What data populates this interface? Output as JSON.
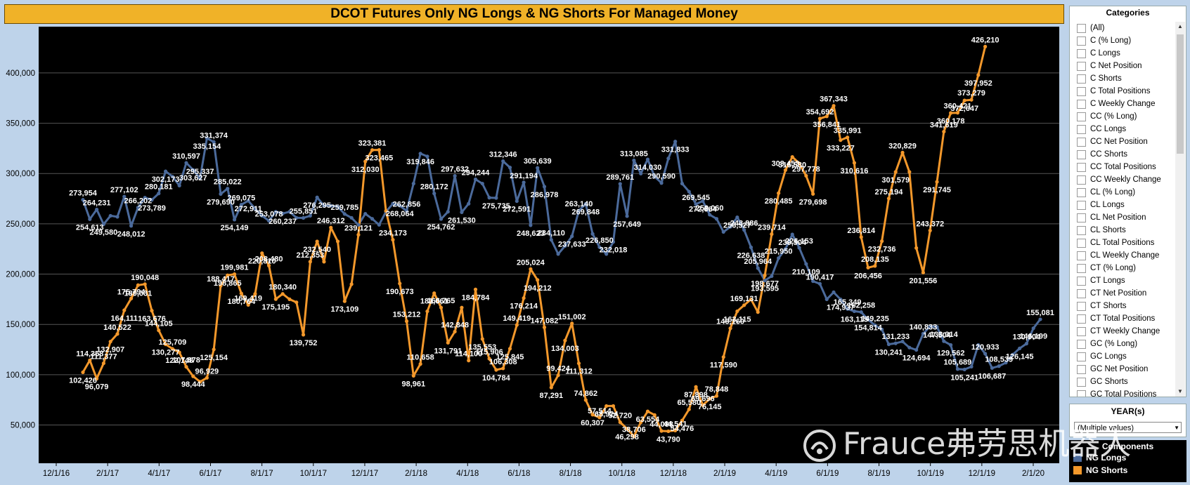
{
  "colors": {
    "longs": "#4b6a9b",
    "shorts": "#f3982b",
    "plot_bg": "#000000",
    "title_bg": "#f0b228"
  },
  "categories_panel": {
    "title": "Categories",
    "items": [
      "(All)",
      "C (% Long)",
      "C Longs",
      "C Net Position",
      "C Shorts",
      "C Total Positions",
      "C Weekly Change",
      "CC (% Long)",
      "CC Longs",
      "CC Net Position",
      "CC Shorts",
      "CC Total Positions",
      "CC Weekly Change",
      "CL (% Long)",
      "CL Longs",
      "CL Net Position",
      "CL Shorts",
      "CL Total Positions",
      "CL Weekly Change",
      "CT (% Long)",
      "CT Longs",
      "CT Net Position",
      "CT Shorts",
      "CT Total Positions",
      "CT Weekly Change",
      "GC (% Long)",
      "GC Longs",
      "GC Net Position",
      "GC Shorts",
      "GC Total Positions"
    ]
  },
  "year_panel": {
    "title": "YEAR(s)",
    "value": "(Multiple values)"
  },
  "legend": {
    "title": "Components",
    "items": [
      "NG Longs",
      "NG Shorts"
    ]
  },
  "watermark": {
    "text": "Frauce弗劳思机器人"
  },
  "chart_data": {
    "type": "line",
    "title": "DCOT Futures Only NG Longs & NG Shorts For Managed Money",
    "xlabel": "",
    "ylabel": "",
    "ylim": [
      12000,
      446000
    ],
    "y_ticks": [
      50000,
      100000,
      150000,
      200000,
      250000,
      300000,
      350000,
      400000
    ],
    "y_tick_labels": [
      "50,000",
      "100,000",
      "150,000",
      "200,000",
      "250,000",
      "300,000",
      "350,000",
      "400,000"
    ],
    "x_tick_labels": [
      "12/1/16",
      "2/1/17",
      "4/1/17",
      "6/1/17",
      "8/1/17",
      "10/1/17",
      "12/1/17",
      "2/1/18",
      "4/1/18",
      "6/1/18",
      "8/1/18",
      "10/1/18",
      "12/1/18",
      "2/1/19",
      "4/1/19",
      "6/1/19",
      "8/1/19",
      "10/1/19",
      "12/1/19",
      "2/1/20"
    ],
    "series": [
      {
        "name": "NG Longs",
        "values": [
          273954,
          254613,
          264231,
          249580,
          258000,
          257000,
          277102,
          248012,
          266202,
          276000,
          273789,
          280181,
          302173,
          297000,
          288000,
          310597,
          303627,
          295337,
          335154,
          331374,
          279690,
          285022,
          254149,
          269075,
          272911,
          265000,
          258000,
          253078,
          262000,
          260237,
          262000,
          256000,
          255851,
          258000,
          276295,
          268000,
          268000,
          267000,
          259785,
          256000,
          249000,
          260000,
          255000,
          249000,
          262000,
          270000,
          268064,
          262856,
          290000,
          319846,
          317000,
          280172,
          254762,
          262000,
          297632,
          261530,
          270000,
          294244,
          290000,
          276000,
          275735,
          312346,
          306000,
          272591,
          291194,
          248623,
          305639,
          286978,
          234110,
          220000,
          228000,
          237633,
          263140,
          269848,
          240000,
          226850,
          220000,
          232018,
          289761,
          257649,
          313085,
          300000,
          314030,
          297000,
          290590,
          315000,
          331833,
          290000,
          282000,
          269545,
          272664,
          259060,
          255000,
          242000,
          247000,
          256527,
          243886,
          226638,
          205964,
          193595,
          198000,
          215950,
          225000,
          239504,
          226153,
          210109,
          193000,
          190417,
          175000,
          182000,
          174937,
          165349,
          163115,
          162258,
          154814,
          149235,
          145000,
          130241,
          131233,
          133000,
          127000,
          124694,
          140833,
          148000,
          147504,
          133314,
          129562,
          105689,
          105241,
          108000,
          129562,
          120933,
          106687,
          108539,
          112000,
          120000,
          126145,
          130904,
          146199,
          155081
        ]
      },
      {
        "name": "NG Shorts",
        "values": [
          102426,
          114358,
          96079,
          111377,
          132907,
          140522,
          164111,
          175794,
          189031,
          190048,
          163676,
          144105,
          130277,
          125709,
          122148,
          107878,
          98444,
          93000,
          96929,
          125154,
          188417,
          198865,
          199981,
          180764,
          169419,
          180340,
          220810,
          208480,
          175195,
          180340,
          175000,
          172000,
          139752,
          212353,
          232540,
          212353,
          246312,
          232540,
          173109,
          190000,
          239121,
          312030,
          323381,
          323465,
          262856,
          234173,
          190673,
          153212,
          98961,
          110658,
          163000,
          181061,
          166765,
          131791,
          142848,
          166765,
          114100,
          184784,
          135553,
          115906,
          104784,
          106308,
          125845,
          149419,
          176214,
          205024,
          194212,
          147082,
          87291,
          99424,
          134003,
          151002,
          111312,
          74862,
          60307,
          57514,
          68924,
          68924,
          52720,
          46298,
          38706,
          52720,
          63554,
          60000,
          44088,
          43790,
          44541,
          54476,
          65580,
          87898,
          69696,
          76145,
          78848,
          117590,
          146160,
          163115,
          169131,
          174937,
          162258,
          198677,
          239714,
          280485,
          303453,
          316530,
          310000,
          297778,
          279698,
          354692,
          356841,
          367343,
          333227,
          335991,
          310616,
          236814,
          206456,
          208135,
          232736,
          275194,
          301579,
          320829,
          301579,
          226000,
          201556,
          243372,
          291745,
          341619,
          360178,
          360421,
          372647,
          373279,
          397952,
          426210
        ]
      }
    ],
    "longs_labels": [
      "273,954",
      "254,613",
      "264,231",
      "249,580",
      "277,102",
      "248,012",
      "266,202",
      "273,789",
      "280,181",
      "302,173",
      "310,597",
      "303,627",
      "295,337",
      "335,154",
      "331,374",
      "279,690",
      "285,022",
      "254,149",
      "269,075",
      "272,911",
      "253,078",
      "260,237",
      "255,851",
      "276,295",
      "259,785",
      "268,064",
      "262,856",
      "319,846",
      "280,172",
      "254,762",
      "297,632",
      "261,530",
      "294,244",
      "275,735",
      "312,346",
      "272,591",
      "291,194",
      "248,623",
      "305,639",
      "286,978",
      "234,110",
      "237,633",
      "263,140",
      "269,848",
      "226,850",
      "232,018",
      "289,761",
      "257,649",
      "313,085",
      "314,030",
      "290,590",
      "331,833",
      "269,545",
      "272,664",
      "259,060",
      "256,527",
      "243,886",
      "226,638",
      "205,964",
      "193,595",
      "215,950",
      "239,504",
      "226,153",
      "210,109",
      "190,417",
      "174,937",
      "165,349",
      "163,115",
      "162,258",
      "154,814",
      "149,235",
      "130,241",
      "131,233",
      "124,694",
      "140,833",
      "147,504",
      "133,314",
      "129,562",
      "105,689",
      "105,241",
      "120,933",
      "106,687",
      "108,539",
      "126,145",
      "130,904",
      "146,199",
      "155,081"
    ],
    "shorts_labels": [
      "102,426",
      "114,358",
      "96,079",
      "111,377",
      "132,907",
      "140,522",
      "164,111",
      "175,794",
      "189,031",
      "190,048",
      "163,676",
      "144,105",
      "130,277",
      "125,709",
      "122,148",
      "107,878",
      "98,444",
      "96,929",
      "125,154",
      "188,417",
      "198,865",
      "199,981",
      "180,764",
      "169,419",
      "220,810",
      "208,480",
      "175,195",
      "180,340",
      "139,752",
      "212,353",
      "232,540",
      "246,312",
      "173,109",
      "239,121",
      "312,030",
      "323,381",
      "323,465",
      "234,173",
      "190,673",
      "153,212",
      "98,961",
      "110,658",
      "181,061",
      "166,765",
      "131,791",
      "142,848",
      "184,784",
      "114,100",
      "135,553",
      "115,906",
      "104,784",
      "106,308",
      "125,845",
      "149,419",
      "176,214",
      "205,024",
      "194,212",
      "147,082",
      "87,291",
      "99,424",
      "134,003",
      "151,002",
      "111,312",
      "74,862",
      "60,307",
      "57,514",
      "68,924",
      "52,720",
      "46,298",
      "38,706",
      "63,554",
      "44,088",
      "43,790",
      "44,541",
      "54,476",
      "65,580",
      "87,898",
      "69,696",
      "76,145",
      "78,848",
      "117,590",
      "146,160",
      "163,115",
      "169,131",
      "198,677",
      "239,714",
      "280,485",
      "303,453",
      "316,530",
      "297,778",
      "279,698",
      "354,692",
      "356,841",
      "367,343",
      "333,227",
      "335,991",
      "310,616",
      "236,814",
      "206,456",
      "208,135",
      "232,736",
      "275,194",
      "301,579",
      "320,829",
      "201,556",
      "243,372",
      "291,745",
      "341,619",
      "360,178",
      "360,421",
      "372,647",
      "373,279",
      "397,952",
      "426,210"
    ]
  }
}
